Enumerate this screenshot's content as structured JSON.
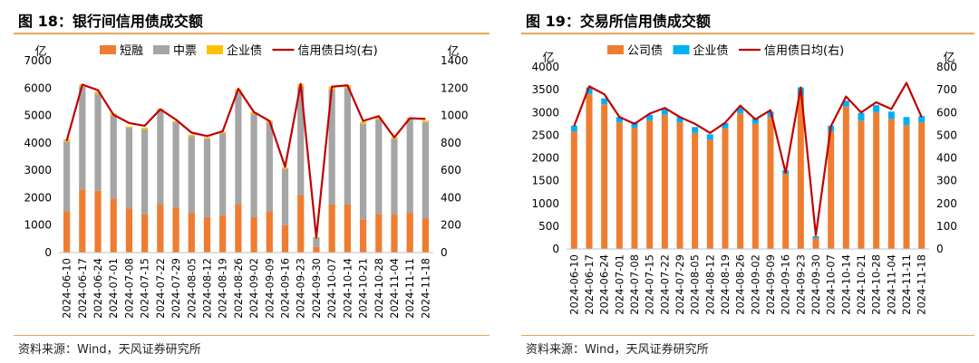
{
  "charts": [
    {
      "title": "图 18：银行间信用债成交额",
      "source": "资料来源：Wind，天风证券研究所",
      "colors": {
        "short": "#ee7d31",
        "mid": "#a5a5a5",
        "corp": "#ffc000",
        "line": "#c00000"
      },
      "chart_data": {
        "type": "bar",
        "stacked": true,
        "categories": [
          "2024-06-10",
          "2024-06-17",
          "2024-06-24",
          "2024-07-01",
          "2024-07-08",
          "2024-07-15",
          "2024-07-22",
          "2024-07-29",
          "2024-08-05",
          "2024-08-12",
          "2024-08-19",
          "2024-08-26",
          "2024-09-02",
          "2024-09-09",
          "2024-09-16",
          "2024-09-23",
          "2024-09-30",
          "2024-10-07",
          "2024-10-14",
          "2024-10-21",
          "2024-10-28",
          "2024-11-04",
          "2024-11-11",
          "2024-11-18"
        ],
        "series": [
          {
            "name": "短融",
            "axis": "left",
            "values": [
              1500,
              2300,
              2250,
              1950,
              1600,
              1400,
              1750,
              1650,
              1450,
              1300,
              1350,
              1750,
              1300,
              1500,
              1000,
              2100,
              200,
              1750,
              1750,
              1200,
              1400,
              1400,
              1450,
              1250
            ]
          },
          {
            "name": "中票",
            "axis": "left",
            "values": [
              2550,
              3750,
              3550,
              3050,
              2950,
              3100,
              3450,
              3100,
              2800,
              2850,
              3000,
              4100,
              3750,
              3250,
              2050,
              3950,
              350,
              4200,
              4250,
              3500,
              3450,
              2750,
              3400,
              3500
            ]
          },
          {
            "name": "企业债",
            "axis": "left",
            "values": [
              80,
              80,
              80,
              80,
              50,
              60,
              50,
              50,
              50,
              50,
              60,
              100,
              80,
              70,
              50,
              100,
              20,
              100,
              100,
              70,
              80,
              60,
              70,
              60
            ]
          },
          {
            "name": "信用债日均(右)",
            "type": "line",
            "axis": "right",
            "values": [
              815,
              1225,
              1185,
              1005,
              945,
              925,
              1045,
              970,
              875,
              850,
              885,
              1195,
              1025,
              960,
              625,
              1230,
              110,
              1210,
              1220,
              960,
              995,
              840,
              980,
              975
            ]
          }
        ],
        "left_axis": {
          "unit": "亿",
          "min": 0,
          "max": 7000,
          "ticks": [
            0,
            1000,
            2000,
            3000,
            4000,
            5000,
            6000,
            7000
          ]
        },
        "right_axis": {
          "unit": "亿",
          "min": 0,
          "max": 1400,
          "ticks": [
            0,
            200,
            400,
            600,
            800,
            1000,
            1200,
            1400
          ]
        },
        "legend": {
          "placement": "top"
        }
      }
    },
    {
      "title": "图 19：交易所信用债成交额",
      "source": "资料来源：Wind，天风证券研究所",
      "colors": {
        "company": "#ee7d31",
        "corp": "#00b0f0",
        "line": "#c00000"
      },
      "chart_data": {
        "type": "bar",
        "stacked": true,
        "categories": [
          "2024-06-10",
          "2024-06-17",
          "2024-06-24",
          "2024-07-01",
          "2024-07-08",
          "2024-07-15",
          "2024-07-22",
          "2024-07-29",
          "2024-08-05",
          "2024-08-12",
          "2024-08-19",
          "2024-08-26",
          "2024-09-02",
          "2024-09-09",
          "2024-09-16",
          "2024-09-23",
          "2024-09-30",
          "2024-10-07",
          "2024-10-14",
          "2024-10-21",
          "2024-10-28",
          "2024-11-04",
          "2024-11-11",
          "2024-11-18"
        ],
        "series": [
          {
            "name": "公司债",
            "axis": "left",
            "values": [
              2580,
              3400,
              3180,
              2780,
              2660,
              2820,
              2950,
              2780,
              2550,
              2400,
              2650,
              2980,
              2750,
              2900,
              1650,
              3380,
              240,
              2580,
              3130,
              2820,
              3000,
              2860,
              2720,
              2780
            ]
          },
          {
            "name": "企业债",
            "axis": "left",
            "values": [
              130,
              150,
              130,
              120,
              130,
              130,
              120,
              120,
              130,
              120,
              120,
              130,
              120,
              120,
              80,
              170,
              40,
              130,
              130,
              170,
              160,
              160,
              180,
              140
            ]
          },
          {
            "name": "信用债日均(右)",
            "type": "line",
            "axis": "right",
            "values": [
              540,
              715,
              680,
              580,
              550,
              595,
              620,
              580,
              550,
              510,
              555,
              630,
              570,
              610,
              335,
              710,
              60,
              540,
              670,
              600,
              645,
              615,
              730,
              580
            ]
          }
        ],
        "left_axis": {
          "unit": "亿",
          "min": 0,
          "max": 4000,
          "ticks": [
            0,
            500,
            1000,
            1500,
            2000,
            2500,
            3000,
            3500,
            4000
          ]
        },
        "right_axis": {
          "unit": "亿",
          "min": 0,
          "max": 800,
          "ticks": [
            0,
            100,
            200,
            300,
            400,
            500,
            600,
            700,
            800
          ]
        },
        "legend": {
          "placement": "top"
        }
      }
    }
  ]
}
